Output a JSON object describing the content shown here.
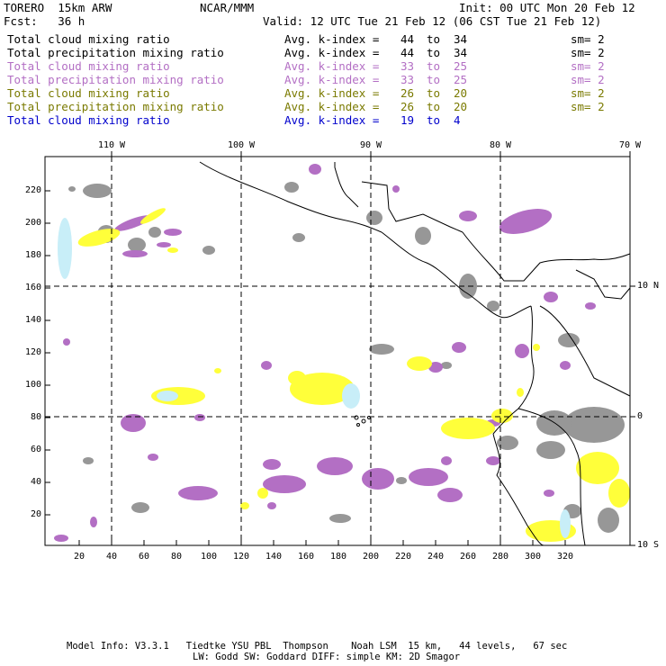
{
  "header": {
    "model_label": "TORERO  15km ARW",
    "org": "NCAR/MMM",
    "init": "Init: 00 UTC Mon 20 Feb 12",
    "fcst": "Fcst:   36 h",
    "valid": "Valid: 12 UTC Tue 21 Feb 12 (06 CST Tue 21 Feb 12)"
  },
  "legend": [
    {
      "field": "Total cloud mixing ratio",
      "avg": "Avg. k-index =",
      "from": "44",
      "to_word": "to",
      "to": "34",
      "sm": "sm= 2",
      "color": "#000000"
    },
    {
      "field": "Total precipitation mixing ratio",
      "avg": "Avg. k-index =",
      "from": "44",
      "to_word": "to",
      "to": "34",
      "sm": "sm= 2",
      "color": "#000000"
    },
    {
      "field": "Total cloud mixing ratio",
      "avg": "Avg. k-index =",
      "from": "33",
      "to_word": "to",
      "to": "25",
      "sm": "sm= 2",
      "color": "#b36fc4"
    },
    {
      "field": "Total precipitation mixing ratio",
      "avg": "Avg. k-index =",
      "from": "33",
      "to_word": "to",
      "to": "25",
      "sm": "sm= 2",
      "color": "#b36fc4"
    },
    {
      "field": "Total cloud mixing ratio",
      "avg": "Avg. k-index =",
      "from": "26",
      "to_word": "to",
      "to": "20",
      "sm": "sm= 2",
      "color": "#7a7a00"
    },
    {
      "field": "Total precipitation mixing ratio",
      "avg": "Avg. k-index =",
      "from": "26",
      "to_word": "to",
      "to": "20",
      "sm": "sm= 2",
      "color": "#7a7a00"
    },
    {
      "field": "Total cloud mixing ratio",
      "avg": "Avg. k-index =",
      "from": "19",
      "to_word": "to",
      "to": "4",
      "sm": "",
      "color": "#0000cc"
    }
  ],
  "map": {
    "x_grid_ticks": [
      "20",
      "40",
      "60",
      "80",
      "100",
      "120",
      "140",
      "160",
      "180",
      "200",
      "220",
      "240",
      "260",
      "280",
      "300",
      "320"
    ],
    "y_grid_ticks": [
      "20",
      "40",
      "60",
      "80",
      "100",
      "120",
      "140",
      "160",
      "180",
      "200",
      "220"
    ],
    "lon_labels": [
      "110 W",
      "100 W",
      "90 W",
      "80 W",
      "70 W"
    ],
    "lat_labels": [
      "10 N",
      "0",
      "10 S"
    ],
    "colors": {
      "gray": "#8c8c8c",
      "purple": "#b36fc4",
      "yellow": "#ffff3a",
      "cyan": "#c8eef8"
    }
  },
  "footer": {
    "line1": "Model Info: V3.3.1   Tiedtke YSU PBL  Thompson    Noah LSM  15 km,   44 levels,   67 sec",
    "line2": "LW: Godd SW: Goddard DIFF: simple KM: 2D Smagor"
  }
}
